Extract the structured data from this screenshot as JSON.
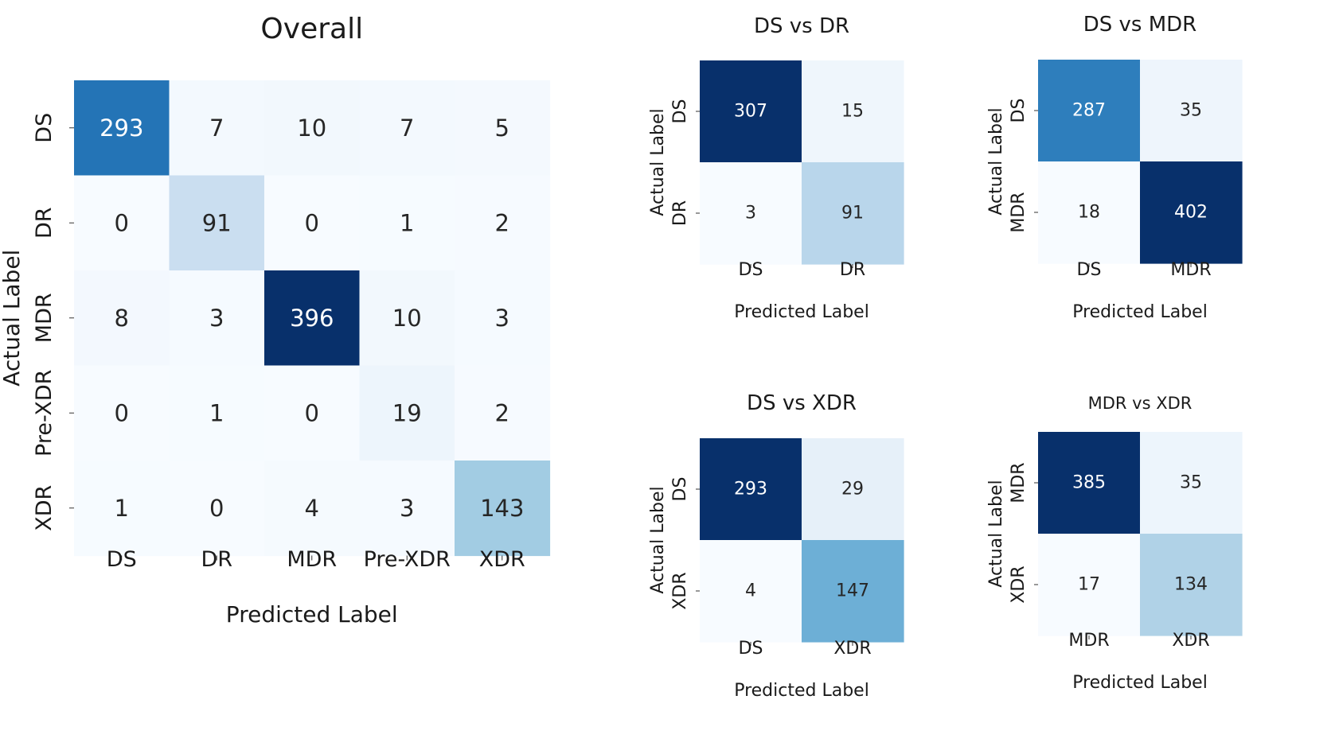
{
  "figure": {
    "colormap": "Blues",
    "colormap_stops": [
      "#f7fbff",
      "#deebf7",
      "#c6dbef",
      "#9ecae1",
      "#6baed6",
      "#4292c6",
      "#2171b5",
      "#08519c",
      "#08306b"
    ]
  },
  "chart_data": [
    {
      "type": "heatmap",
      "id": "overall",
      "title": "Overall",
      "xlabel": "Predicted Label",
      "ylabel": "Actual Label",
      "x_categories": [
        "DS",
        "DR",
        "MDR",
        "Pre-XDR",
        "XDR"
      ],
      "y_categories": [
        "DS",
        "DR",
        "MDR",
        "Pre-XDR",
        "XDR"
      ],
      "values": [
        [
          293,
          7,
          10,
          7,
          5
        ],
        [
          0,
          91,
          0,
          1,
          2
        ],
        [
          8,
          3,
          396,
          10,
          3
        ],
        [
          0,
          1,
          0,
          19,
          2
        ],
        [
          1,
          0,
          4,
          3,
          143
        ]
      ]
    },
    {
      "type": "heatmap",
      "id": "ds-vs-dr",
      "title": "DS vs DR",
      "xlabel": "Predicted Label",
      "ylabel": "Actual Label",
      "x_categories": [
        "DS",
        "DR"
      ],
      "y_categories": [
        "DS",
        "DR"
      ],
      "values": [
        [
          307,
          15
        ],
        [
          3,
          91
        ]
      ]
    },
    {
      "type": "heatmap",
      "id": "ds-vs-mdr",
      "title": "DS vs MDR",
      "xlabel": "Predicted Label",
      "ylabel": "Actual Label",
      "x_categories": [
        "DS",
        "MDR"
      ],
      "y_categories": [
        "DS",
        "MDR"
      ],
      "values": [
        [
          287,
          35
        ],
        [
          18,
          402
        ]
      ]
    },
    {
      "type": "heatmap",
      "id": "ds-vs-xdr",
      "title": "DS vs XDR",
      "xlabel": "Predicted Label",
      "ylabel": "Actual Label",
      "x_categories": [
        "DS",
        "XDR"
      ],
      "y_categories": [
        "DS",
        "XDR"
      ],
      "values": [
        [
          293,
          29
        ],
        [
          4,
          147
        ]
      ]
    },
    {
      "type": "heatmap",
      "id": "mdr-vs-xdr",
      "title": "MDR vs XDR",
      "xlabel": "Predicted Label",
      "ylabel": "Actual Label",
      "x_categories": [
        "MDR",
        "XDR"
      ],
      "y_categories": [
        "MDR",
        "XDR"
      ],
      "values": [
        [
          385,
          35
        ],
        [
          17,
          134
        ]
      ]
    }
  ]
}
